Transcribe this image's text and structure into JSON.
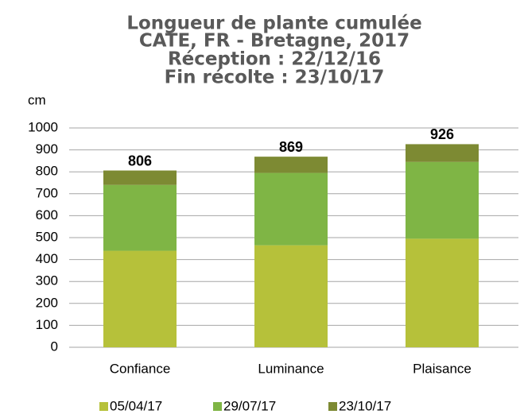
{
  "chart_data": {
    "type": "stacked_bar",
    "title": [
      "Longueur de plante cumulée",
      "CATE, FR - Bretagne, 2017",
      "Réception : 22/12/16",
      "Fin récolte : 23/10/17"
    ],
    "y_label": "cm",
    "categories": [
      "Confiance",
      "Luminance",
      "Plaisance"
    ],
    "series": [
      {
        "name": "05/04/17",
        "color": "#b6c13a",
        "values": [
          440,
          465,
          495
        ]
      },
      {
        "name": "29/07/17",
        "color": "#7fb545",
        "values": [
          300,
          330,
          350
        ]
      },
      {
        "name": "23/10/17",
        "color": "#7d8a33",
        "values": [
          66,
          74,
          81
        ]
      }
    ],
    "totals": [
      806,
      869,
      926
    ],
    "ylim": [
      0,
      1000
    ],
    "yticks": [
      0,
      100,
      200,
      300,
      400,
      500,
      600,
      700,
      800,
      900,
      1000
    ],
    "grid": true,
    "legend": "bottom"
  }
}
